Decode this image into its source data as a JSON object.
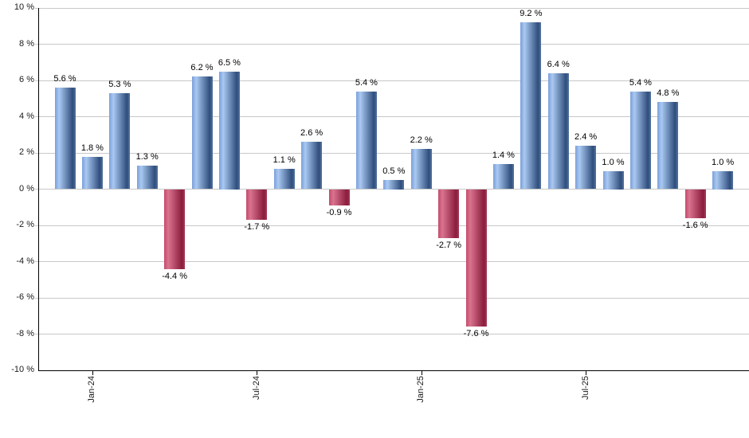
{
  "chart_data": {
    "type": "bar",
    "title": "",
    "xlabel": "",
    "ylabel": "",
    "ylim": [
      -10,
      10
    ],
    "grid": true,
    "legend_position": "none",
    "values": [
      5.6,
      1.8,
      5.3,
      1.3,
      -4.4,
      6.2,
      6.5,
      -1.7,
      1.1,
      2.6,
      -0.9,
      5.4,
      0.5,
      2.2,
      -2.7,
      -7.6,
      1.4,
      9.2,
      6.4,
      2.4,
      1.0,
      5.4,
      4.8,
      -1.6,
      1.0
    ],
    "bar_value_labels": [
      "5.6 %",
      "1.8 %",
      "5.3 %",
      "1.3 %",
      "-4.4 %",
      "6.2 %",
      "6.5 %",
      "-1.7 %",
      "1.1 %",
      "2.6 %",
      "-0.9 %",
      "5.4 %",
      "0.5 %",
      "2.2 %",
      "-2.7 %",
      "-7.6 %",
      "1.4 %",
      "9.2 %",
      "6.4 %",
      "2.4 %",
      "1.0 %",
      "5.4 %",
      "4.8 %",
      "-1.6 %",
      "1.0 %"
    ],
    "x_ticks": [
      {
        "label": "Jan-24",
        "bar_index": 1
      },
      {
        "label": "Jul-24",
        "bar_index": 7
      },
      {
        "label": "Jan-25",
        "bar_index": 13
      },
      {
        "label": "Jul-25",
        "bar_index": 19
      }
    ],
    "y_ticks": [
      {
        "label": "10 %",
        "value": 10
      },
      {
        "label": "8 %",
        "value": 8
      },
      {
        "label": "6 %",
        "value": 6
      },
      {
        "label": "4 %",
        "value": 4
      },
      {
        "label": "2 %",
        "value": 2
      },
      {
        "label": "0 %",
        "value": 0
      },
      {
        "label": "-2 %",
        "value": -2
      },
      {
        "label": "-4 %",
        "value": -4
      },
      {
        "label": "-6 %",
        "value": -6
      },
      {
        "label": "-8 %",
        "value": -8
      },
      {
        "label": "-10 %",
        "value": -10
      }
    ],
    "colors": {
      "positive_gradient": [
        "#7b9fd9",
        "#a9c9f2",
        "#2f4d7c",
        "#56759f"
      ],
      "negative_gradient": [
        "#c44a6a",
        "#d9738f",
        "#8b1c3c",
        "#a33a58"
      ],
      "gridline": "#c8c8c8",
      "axis": "#000000",
      "background": "#ffffff"
    }
  }
}
